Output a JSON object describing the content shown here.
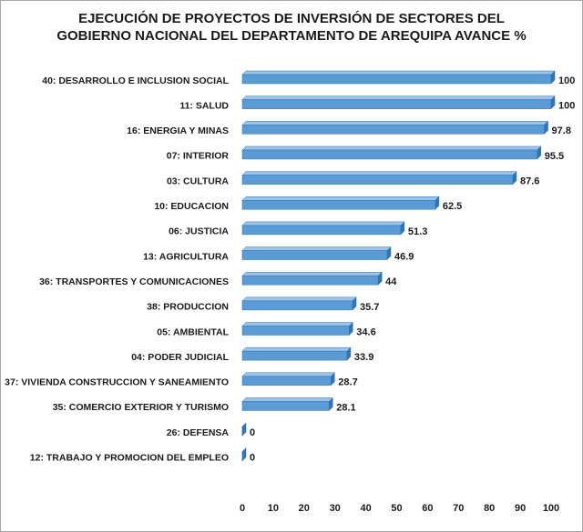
{
  "chart_data": {
    "type": "bar",
    "orientation": "horizontal",
    "title": "EJECUCIÓN DE PROYECTOS DE INVERSIÓN DE SECTORES DEL GOBIERNO NACIONAL DEL DEPARTAMENTO DE AREQUIPA AVANCE %",
    "title_lines": [
      "EJECUCIÓN DE PROYECTOS DE INVERSIÓN DE SECTORES DEL",
      "GOBIERNO NACIONAL  DEL DEPARTAMENTO DE AREQUIPA AVANCE %"
    ],
    "categories": [
      "40: DESARROLLO E INCLUSION SOCIAL",
      "11: SALUD",
      "16: ENERGIA Y MINAS",
      "07: INTERIOR",
      "03: CULTURA",
      "10: EDUCACION",
      "06: JUSTICIA",
      "13: AGRICULTURA",
      "36: TRANSPORTES Y COMUNICACIONES",
      "38: PRODUCCION",
      "05: AMBIENTAL",
      "04: PODER JUDICIAL",
      "37: VIVIENDA CONSTRUCCION Y SANEAMIENTO",
      "35: COMERCIO EXTERIOR Y TURISMO",
      "26: DEFENSA",
      "12: TRABAJO Y PROMOCION DEL EMPLEO"
    ],
    "values": [
      100,
      100,
      97.8,
      95.5,
      87.6,
      62.5,
      51.3,
      46.9,
      44,
      35.7,
      34.6,
      33.9,
      28.7,
      28.1,
      0,
      0
    ],
    "value_labels": [
      "100",
      "100",
      "97.8",
      "95.5",
      "87.6",
      "62.5",
      "51.3",
      "46.9",
      "44",
      "35.7",
      "34.6",
      "33.9",
      "28.7",
      "28.1",
      "0",
      "0"
    ],
    "xlim": [
      0,
      100
    ],
    "x_ticks": [
      "0",
      "10",
      "20",
      "30",
      "40",
      "50",
      "60",
      "70",
      "80",
      "90",
      "100"
    ],
    "xlabel": "",
    "ylabel": "",
    "grid": false,
    "legend": "none",
    "bar_style": "3d",
    "colors": {
      "bar_front": "#5b9bd5",
      "bar_top": "#9dc3e6",
      "bar_side": "#2e75b6",
      "text": "#1a1a1a",
      "border": "#a6a6a6"
    }
  }
}
